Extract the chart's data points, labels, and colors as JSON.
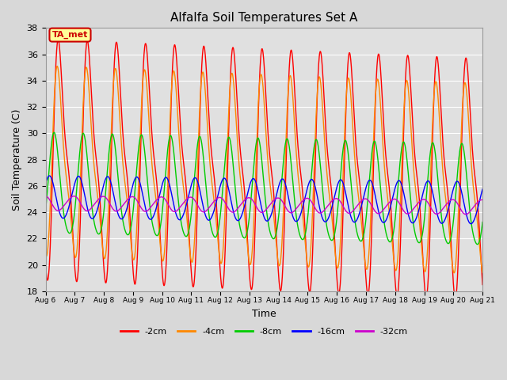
{
  "title": "Alfalfa Soil Temperatures Set A",
  "xlabel": "Time",
  "ylabel": "Soil Temperature (C)",
  "ylim": [
    18,
    38
  ],
  "yticks": [
    18,
    20,
    22,
    24,
    26,
    28,
    30,
    32,
    34,
    36,
    38
  ],
  "start_day": 6,
  "end_day": 21,
  "n_points": 1500,
  "series": [
    {
      "label": "-2cm",
      "color": "#ff0000",
      "amplitude": 8.0,
      "mean": 28.0,
      "phase_shift": 0.0,
      "harmonic2": 2.5,
      "harmonic2_phase": 0.0,
      "trend": -0.1
    },
    {
      "label": "-4cm",
      "color": "#ff8800",
      "amplitude": 6.5,
      "mean": 27.5,
      "phase_shift": 0.05,
      "harmonic2": 1.8,
      "harmonic2_phase": 0.05,
      "trend": -0.09
    },
    {
      "label": "-8cm",
      "color": "#00cc00",
      "amplitude": 3.8,
      "mean": 25.8,
      "phase_shift": 0.2,
      "harmonic2": 0.5,
      "harmonic2_phase": 0.2,
      "trend": -0.06
    },
    {
      "label": "-16cm",
      "color": "#0000ff",
      "amplitude": 1.6,
      "mean": 25.1,
      "phase_shift": 0.38,
      "harmonic2": 0.1,
      "harmonic2_phase": 0.38,
      "trend": -0.03
    },
    {
      "label": "-32cm",
      "color": "#cc00cc",
      "amplitude": 0.55,
      "mean": 24.7,
      "phase_shift": 0.55,
      "harmonic2": 0.05,
      "harmonic2_phase": 0.55,
      "trend": -0.02
    }
  ],
  "legend_label": "TA_met",
  "legend_box_facecolor": "#ffff99",
  "legend_box_edgecolor": "#cc0000",
  "legend_text_color": "#cc0000",
  "background_color": "#d8d8d8",
  "plot_bg_color": "#e0e0e0",
  "grid_color": "#ffffff",
  "figsize": [
    6.4,
    4.8
  ],
  "dpi": 100
}
